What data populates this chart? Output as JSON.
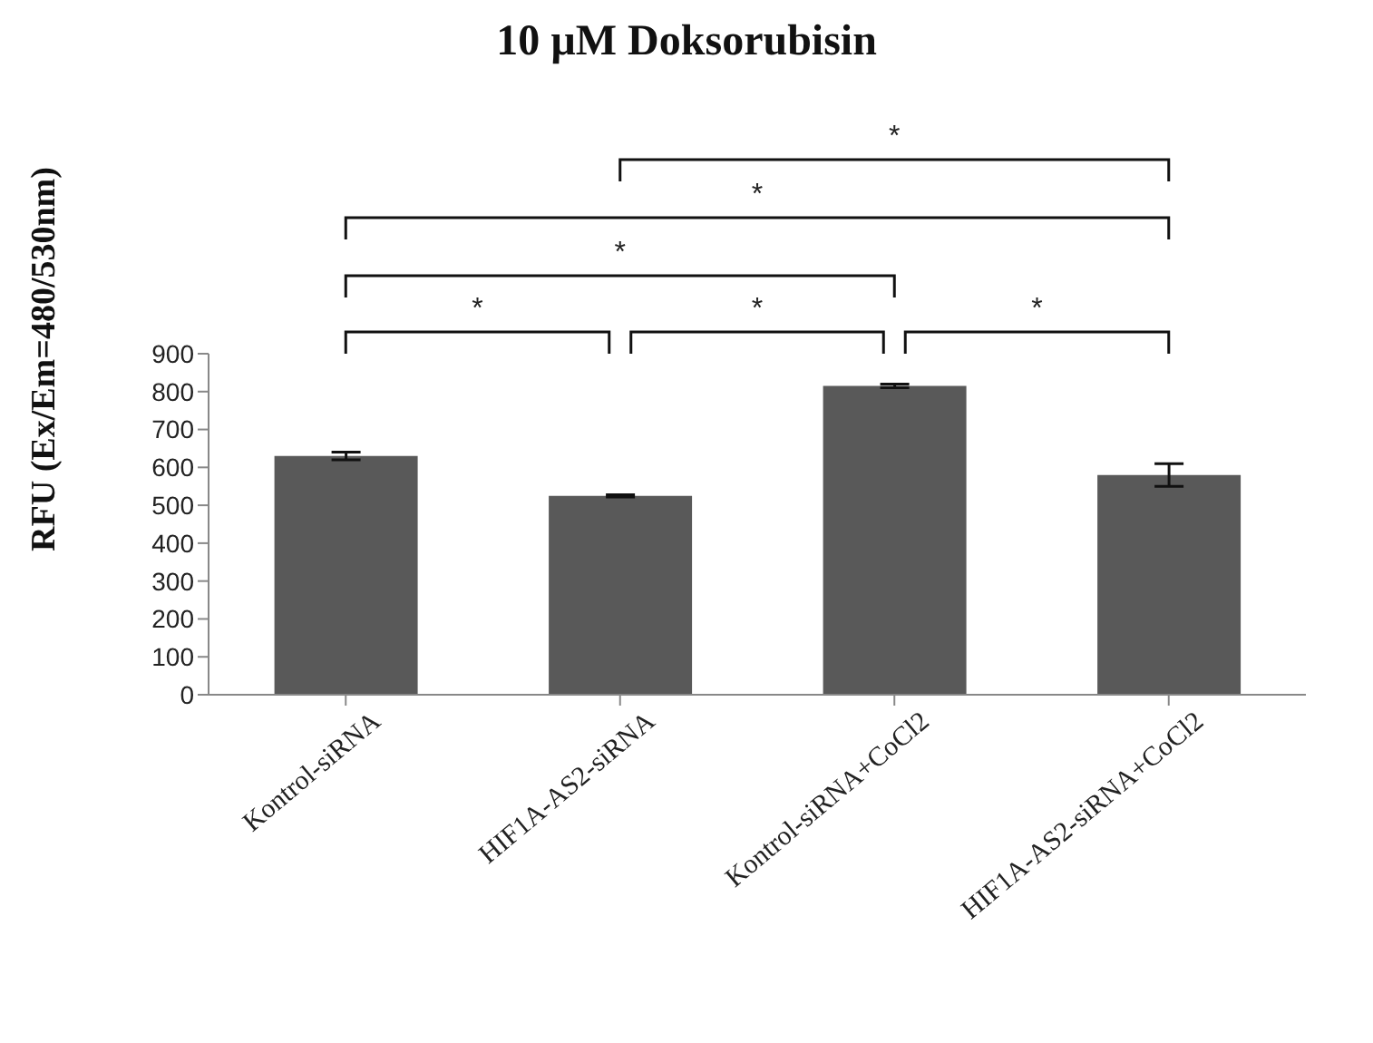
{
  "chart_data": {
    "type": "bar",
    "title": "10 µM Doksorubisin",
    "ylabel": "RFU (Ex/Em=480/530nm)",
    "categories": [
      "Kontrol-siRNA",
      "HIF1A-AS2-siRNA",
      "Kontrol-siRNA+CoCl2",
      "HIF1A-AS2-siRNA+CoCl2"
    ],
    "values": [
      630,
      525,
      815,
      580
    ],
    "errors": [
      10,
      3,
      5,
      30
    ],
    "color": "#595959",
    "ylim": [
      0,
      900
    ],
    "yticks": [
      0,
      100,
      200,
      300,
      400,
      500,
      600,
      700,
      800,
      900
    ],
    "grid": false,
    "annotations": [
      "*",
      "*",
      "*",
      "*",
      "*",
      "*"
    ]
  }
}
